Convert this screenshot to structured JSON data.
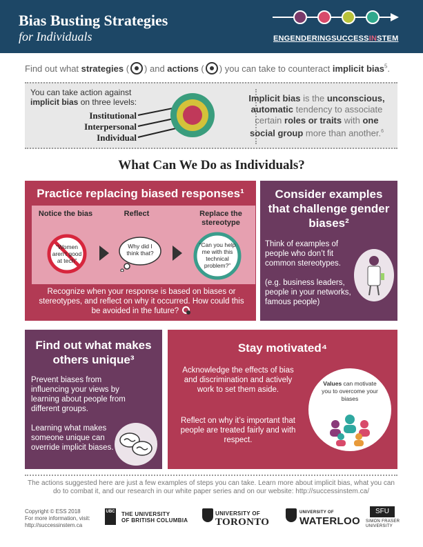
{
  "header": {
    "title": "Bias Busting Strategies",
    "subtitle": "for Individuals",
    "org_pre": "ENGENDERINGSUCCESS",
    "org_in": "IN",
    "org_post": "STEM"
  },
  "intro": {
    "t1": "Find out what ",
    "strategies": "strategies",
    "t2": " and ",
    "actions": "actions",
    "t3": " you can take to counteract ",
    "implicit": "implicit bias",
    "sup": "5",
    "t4": "."
  },
  "levels": {
    "lead1": "You can take action against",
    "lead2_bold": "implicit bias",
    "lead2_rest": " on three levels:",
    "items": [
      "Institutional",
      "Interpersonal",
      "Individual"
    ]
  },
  "definition": {
    "b1": "Implicit bias",
    "t1": " is the ",
    "b2": "unconscious, automatic",
    "t2": " tendency to associate certain ",
    "b3": "roles or traits",
    "t3": " with ",
    "b4": "one social group",
    "t4": " more than another.",
    "sup": "6"
  },
  "section_title": "What Can We Do as Individuals?",
  "practice": {
    "title": "Practice replacing biased responses¹",
    "step1": "Notice the bias",
    "step2": "Reflect",
    "step3": "Replace the stereotype",
    "bubble1": "“Women aren’t good at tech”",
    "bubble2": "Why did I think that?",
    "bubble3": "“Can you help me with this technical problem?”",
    "body": "Recognize when your response is based on biases or stereotypes, and reflect on why it occurred. How could this be avoided in the future?"
  },
  "consider": {
    "title": "Consider examples that challenge gender biases²",
    "p1": "Think of examples of people who don’t fit common stereotypes.",
    "p2": "(e.g. business leaders, people in your networks, famous people)"
  },
  "unique": {
    "title": "Find out what makes others unique³",
    "p1": "Prevent biases from influencing your views by learning about people from different groups.",
    "p2": "Learning what makes someone unique can override implicit biases."
  },
  "motivated": {
    "title": "Stay motivated⁴",
    "p1": "Acknowledge the effects of bias and discrimination and actively work to set them aside.",
    "p2": "Reflect on why it’s important that people are treated fairly and with respect.",
    "circle_bold": "Values",
    "circle_rest": " can motivate you to overcome your biases"
  },
  "footnote": "The actions suggested here are just a few examples of steps you can take. Learn more about implicit bias, what you can do to combat it, and our research in our white paper series and on our website: http://successinstem.ca/",
  "footer": {
    "copyright": "Copyright © ESS 2018",
    "info": "For more information, visit:",
    "url": "http://successinstem.ca",
    "ubc1": "THE UNIVERSITY",
    "ubc2": "OF BRITISH COLUMBIA",
    "ubc_mark": "UBC",
    "uoft1": "UNIVERSITY OF",
    "uoft2": "TORONTO",
    "uw1": "UNIVERSITY OF",
    "uw2": "WATERLOO",
    "sfu_mark": "SFU",
    "sfu1": "SIMON FRASER",
    "sfu2": "UNIVERSITY"
  },
  "colors": {
    "header": "#1d4766",
    "crimson": "#b23a54",
    "plum": "#6b3a5f",
    "pink": "#e6a0b0"
  },
  "icons": [
    "target-icon",
    "runner-icon",
    "no-symbol-icon",
    "chevron-right-icon",
    "scientist-icon",
    "speech-bubbles-icon",
    "group-people-icon"
  ]
}
